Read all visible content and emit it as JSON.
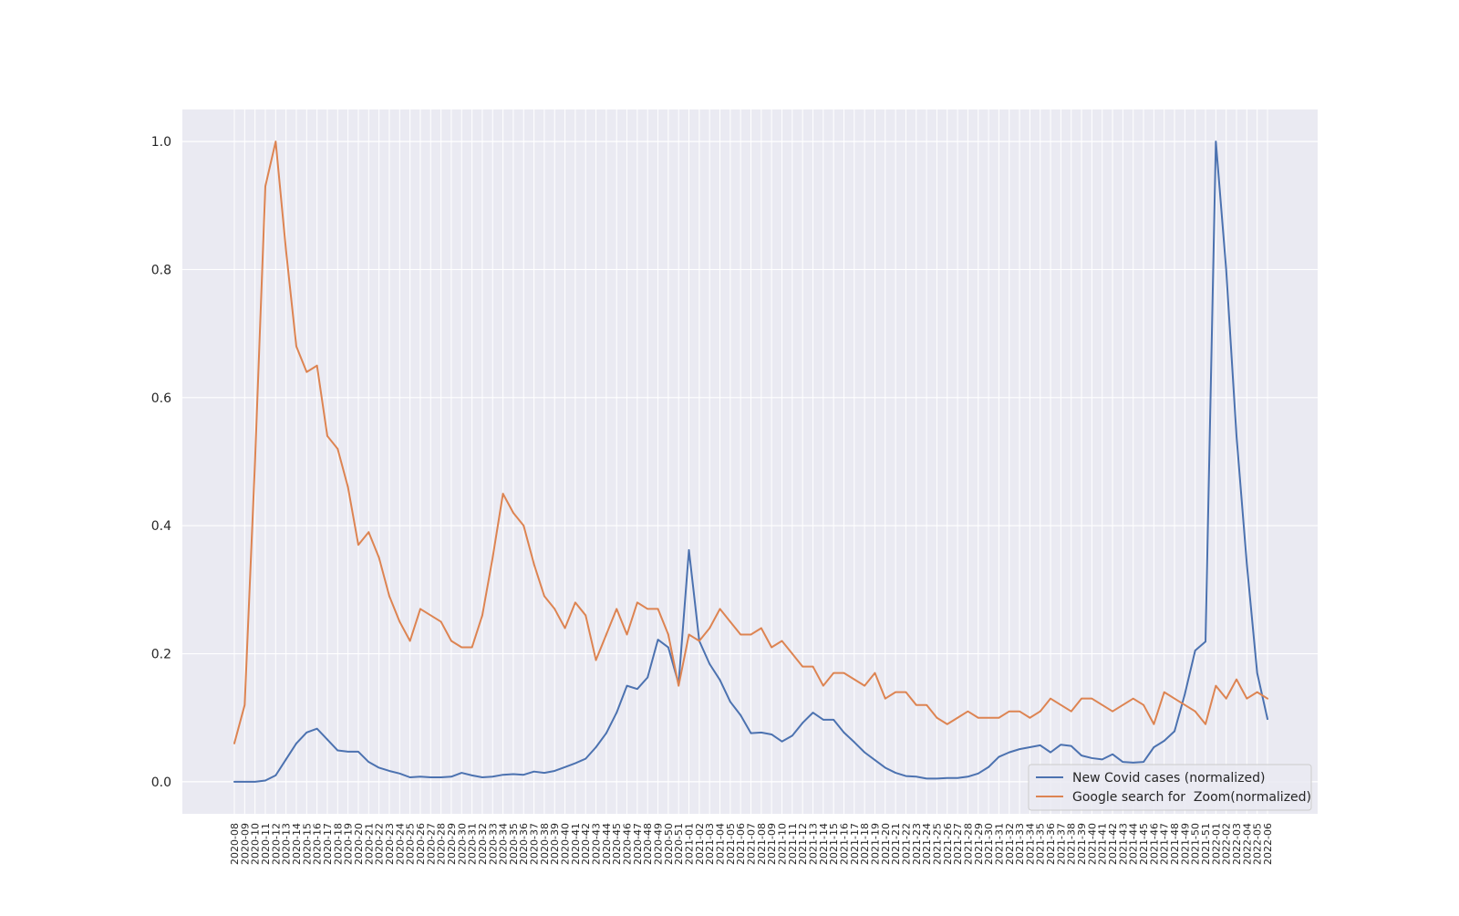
{
  "chart_data": {
    "type": "line",
    "title": "",
    "xlabel": "",
    "ylabel": "",
    "ylim": [
      -0.05,
      1.05
    ],
    "yticks": [
      0.0,
      0.2,
      0.4,
      0.6,
      0.8,
      1.0
    ],
    "ytick_labels": [
      "0.0",
      "0.2",
      "0.4",
      "0.6",
      "0.8",
      "1.0"
    ],
    "grid": true,
    "legend_position": "lower-right",
    "background": "#eaeaf2",
    "x": [
      "2020-08",
      "2020-09",
      "2020-10",
      "2020-11",
      "2020-12",
      "2020-13",
      "2020-14",
      "2020-15",
      "2020-16",
      "2020-17",
      "2020-18",
      "2020-19",
      "2020-20",
      "2020-21",
      "2020-22",
      "2020-23",
      "2020-24",
      "2020-25",
      "2020-26",
      "2020-27",
      "2020-28",
      "2020-29",
      "2020-30",
      "2020-31",
      "2020-32",
      "2020-33",
      "2020-34",
      "2020-35",
      "2020-36",
      "2020-37",
      "2020-38",
      "2020-39",
      "2020-40",
      "2020-41",
      "2020-42",
      "2020-43",
      "2020-44",
      "2020-45",
      "2020-46",
      "2020-47",
      "2020-48",
      "2020-49",
      "2020-50",
      "2020-51",
      "2021-01",
      "2021-02",
      "2021-03",
      "2021-04",
      "2021-05",
      "2021-06",
      "2021-07",
      "2021-08",
      "2021-09",
      "2021-10",
      "2021-11",
      "2021-12",
      "2021-13",
      "2021-14",
      "2021-15",
      "2021-16",
      "2021-17",
      "2021-18",
      "2021-19",
      "2021-20",
      "2021-21",
      "2021-22",
      "2021-23",
      "2021-24",
      "2021-25",
      "2021-26",
      "2021-27",
      "2021-28",
      "2021-29",
      "2021-30",
      "2021-31",
      "2021-32",
      "2021-33",
      "2021-34",
      "2021-35",
      "2021-36",
      "2021-37",
      "2021-38",
      "2021-39",
      "2021-40",
      "2021-41",
      "2021-42",
      "2021-43",
      "2021-44",
      "2021-45",
      "2021-46",
      "2021-47",
      "2021-48",
      "2021-49",
      "2021-50",
      "2021-51",
      "2022-01",
      "2022-02",
      "2022-03",
      "2022-04",
      "2022-05",
      "2022-06"
    ],
    "series": [
      {
        "name": "New Covid cases (normalized)",
        "color": "#4c72b0",
        "values": [
          0.0,
          0.0,
          0.0,
          0.002,
          0.01,
          0.035,
          0.06,
          0.077,
          0.083,
          0.066,
          0.049,
          0.047,
          0.047,
          0.031,
          0.022,
          0.017,
          0.013,
          0.007,
          0.008,
          0.007,
          0.007,
          0.008,
          0.014,
          0.01,
          0.007,
          0.008,
          0.011,
          0.012,
          0.011,
          0.016,
          0.014,
          0.017,
          0.023,
          0.029,
          0.036,
          0.054,
          0.076,
          0.108,
          0.15,
          0.145,
          0.163,
          0.222,
          0.21,
          0.153,
          0.362,
          0.22,
          0.184,
          0.159,
          0.125,
          0.104,
          0.076,
          0.077,
          0.074,
          0.063,
          0.072,
          0.092,
          0.108,
          0.097,
          0.097,
          0.077,
          0.062,
          0.046,
          0.034,
          0.022,
          0.014,
          0.009,
          0.008,
          0.005,
          0.005,
          0.006,
          0.006,
          0.008,
          0.013,
          0.023,
          0.039,
          0.046,
          0.051,
          0.054,
          0.057,
          0.046,
          0.058,
          0.056,
          0.041,
          0.037,
          0.035,
          0.043,
          0.031,
          0.03,
          0.031,
          0.054,
          0.064,
          0.079,
          0.137,
          0.205,
          0.219,
          1.0,
          0.8,
          0.54,
          0.34,
          0.17,
          0.098
        ]
      },
      {
        "name": "Google search for  Zoom(normalized)",
        "color": "#dd8452",
        "values": [
          0.06,
          0.12,
          0.5,
          0.93,
          1.0,
          0.83,
          0.68,
          0.64,
          0.65,
          0.54,
          0.52,
          0.46,
          0.37,
          0.39,
          0.35,
          0.29,
          0.25,
          0.22,
          0.27,
          0.26,
          0.25,
          0.22,
          0.21,
          0.21,
          0.26,
          0.35,
          0.45,
          0.42,
          0.4,
          0.34,
          0.29,
          0.27,
          0.24,
          0.28,
          0.26,
          0.19,
          0.23,
          0.27,
          0.23,
          0.28,
          0.27,
          0.27,
          0.23,
          0.15,
          0.23,
          0.22,
          0.24,
          0.27,
          0.25,
          0.23,
          0.23,
          0.24,
          0.21,
          0.22,
          0.2,
          0.18,
          0.18,
          0.15,
          0.17,
          0.17,
          0.16,
          0.15,
          0.17,
          0.13,
          0.14,
          0.14,
          0.12,
          0.12,
          0.1,
          0.09,
          0.1,
          0.11,
          0.1,
          0.1,
          0.1,
          0.11,
          0.11,
          0.1,
          0.11,
          0.13,
          0.12,
          0.11,
          0.13,
          0.13,
          0.12,
          0.11,
          0.12,
          0.13,
          0.12,
          0.09,
          0.14,
          0.13,
          0.12,
          0.11,
          0.09,
          0.15,
          0.13,
          0.16,
          0.13,
          0.14,
          0.13
        ]
      }
    ]
  }
}
